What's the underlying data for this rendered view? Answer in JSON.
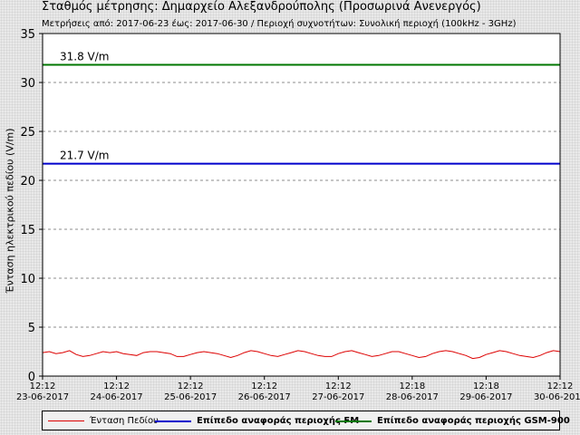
{
  "header": {
    "title": "Σταθμός μέτρησης: Δημαρχείο Αλεξανδρούπολης (Προσωρινά Ανενεργός)",
    "subtitle": "Μετρήσεις από: 2017-06-23 έως: 2017-06-30 / Περιοχή συχνοτήτων: Συνολική περιοχή (100kHz - 3GHz)"
  },
  "colors": {
    "field": "#dd0000",
    "fm": "#0000cc",
    "gsm": "#007700"
  },
  "chart_data": {
    "type": "line",
    "title": "Σταθμός μέτρησης: Δημαρχείο Αλεξανδρούπολης (Προσωρινά Ανενεργός)",
    "subtitle": "Μετρήσεις από: 2017-06-23 έως: 2017-06-30 / Περιοχή συχνοτήτων: Συνολική περιοχή (100kHz - 3GHz)",
    "ylabel": "Ένταση ηλεκτρικού πεδίου (V/m)",
    "ylim": [
      0,
      35
    ],
    "yticks": [
      0,
      5,
      10,
      15,
      20,
      25,
      30,
      35
    ],
    "grid": true,
    "xticks": [
      {
        "time": "12:12",
        "date": "23-06-2017"
      },
      {
        "time": "12:12",
        "date": "24-06-2017"
      },
      {
        "time": "12:12",
        "date": "25-06-2017"
      },
      {
        "time": "12:12",
        "date": "26-06-2017"
      },
      {
        "time": "12:12",
        "date": "27-06-2017"
      },
      {
        "time": "12:18",
        "date": "28-06-2017"
      },
      {
        "time": "12:18",
        "date": "29-06-2017"
      },
      {
        "time": "12:12",
        "date": "30-06-2017"
      }
    ],
    "legend_position": "bottom",
    "series": [
      {
        "name": "Ένταση Πεδίου",
        "color": "#dd0000",
        "values": [
          2.4,
          2.5,
          2.3,
          2.4,
          2.6,
          2.2,
          2.0,
          2.1,
          2.3,
          2.5,
          2.4,
          2.5,
          2.3,
          2.2,
          2.1,
          2.4,
          2.5,
          2.5,
          2.4,
          2.3,
          2.0,
          2.0,
          2.2,
          2.4,
          2.5,
          2.4,
          2.3,
          2.1,
          1.9,
          2.1,
          2.4,
          2.6,
          2.5,
          2.3,
          2.1,
          2.0,
          2.2,
          2.4,
          2.6,
          2.5,
          2.3,
          2.1,
          2.0,
          2.0,
          2.3,
          2.5,
          2.6,
          2.4,
          2.2,
          2.0,
          2.1,
          2.3,
          2.5,
          2.5,
          2.3,
          2.1,
          1.9,
          2.0,
          2.3,
          2.5,
          2.6,
          2.5,
          2.3,
          2.1,
          1.8,
          1.9,
          2.2,
          2.4,
          2.6,
          2.5,
          2.3,
          2.1,
          2.0,
          1.9,
          2.1,
          2.4,
          2.6,
          2.5
        ]
      },
      {
        "name": "Επίπεδο αναφοράς περιοχής FM",
        "color": "#0000cc",
        "constant": 21.7,
        "label": "21.7 V/m"
      },
      {
        "name": "Επίπεδο αναφοράς περιοχής GSM-900",
        "color": "#007700",
        "constant": 31.8,
        "label": "31.8 V/m"
      }
    ]
  }
}
